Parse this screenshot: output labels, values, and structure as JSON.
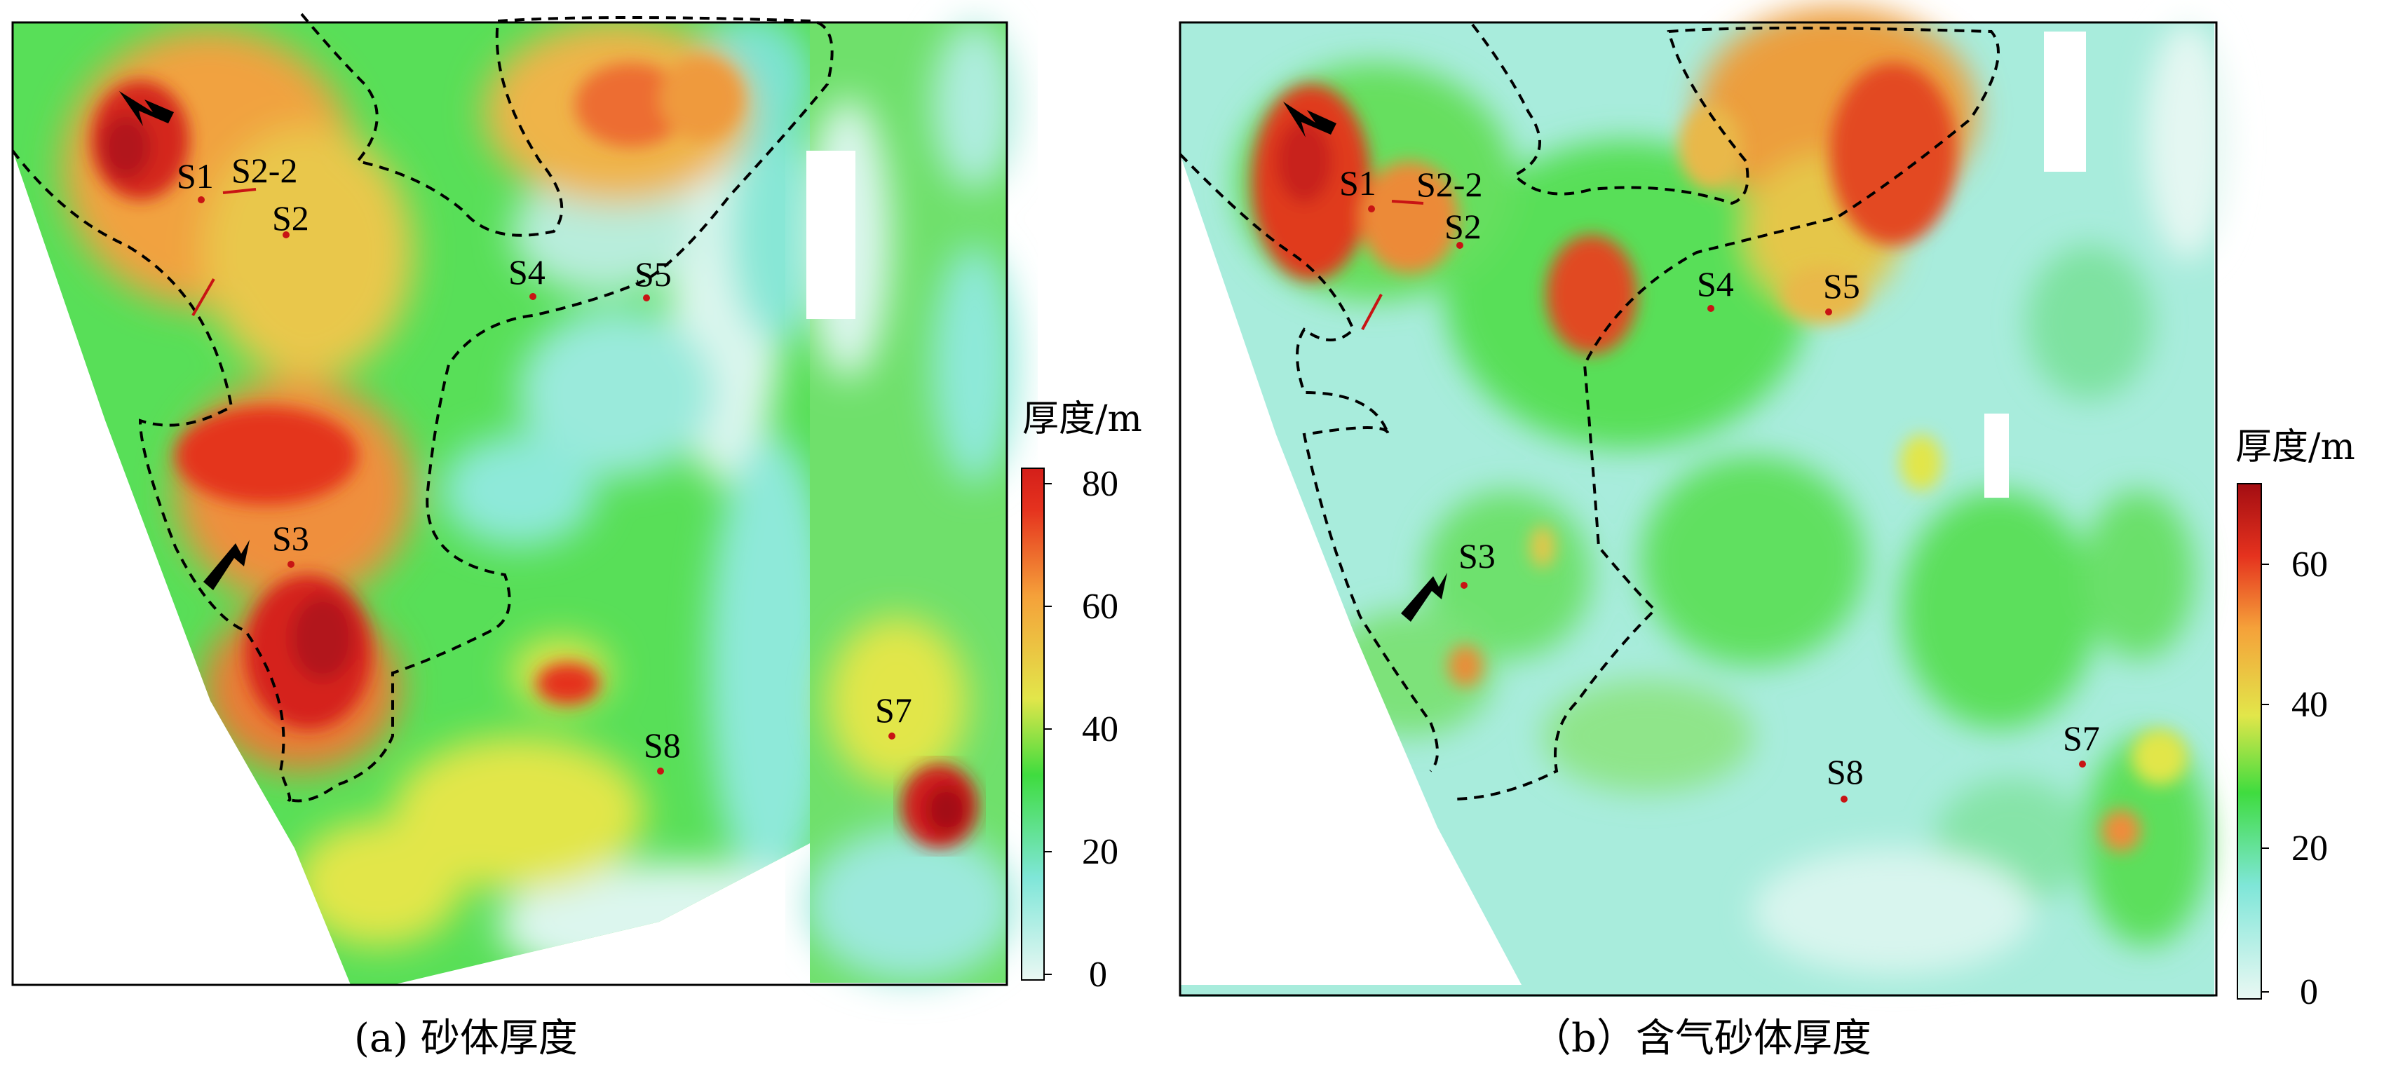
{
  "colors": {
    "low": "#e6f7f1",
    "cyan": "#7fe6d8",
    "green": "#3fdc3f",
    "yellow": "#e2e64a",
    "orange": "#f5a13a",
    "red": "#e5321e",
    "darkred": "#a30d12",
    "boundary": "#000000",
    "well": "#c81414"
  },
  "panels": [
    {
      "id": "a",
      "caption": "(a) 砂体厚度",
      "colorbar": {
        "title": "厚度/m",
        "ticks": [
          "80",
          "60",
          "40",
          "20",
          "0"
        ]
      },
      "wells": [
        {
          "name": "S1"
        },
        {
          "name": "S2-2"
        },
        {
          "name": "S2"
        },
        {
          "name": "S3"
        },
        {
          "name": "S4"
        },
        {
          "name": "S5"
        },
        {
          "name": "S7"
        },
        {
          "name": "S8"
        }
      ]
    },
    {
      "id": "b",
      "caption": "（b）含气砂体厚度",
      "colorbar": {
        "title": "厚度/m",
        "ticks": [
          "60",
          "40",
          "20",
          "0"
        ]
      },
      "wells": [
        {
          "name": "S1"
        },
        {
          "name": "S2-2"
        },
        {
          "name": "S2"
        },
        {
          "name": "S3"
        },
        {
          "name": "S4"
        },
        {
          "name": "S5"
        },
        {
          "name": "S7"
        },
        {
          "name": "S8"
        }
      ]
    }
  ]
}
